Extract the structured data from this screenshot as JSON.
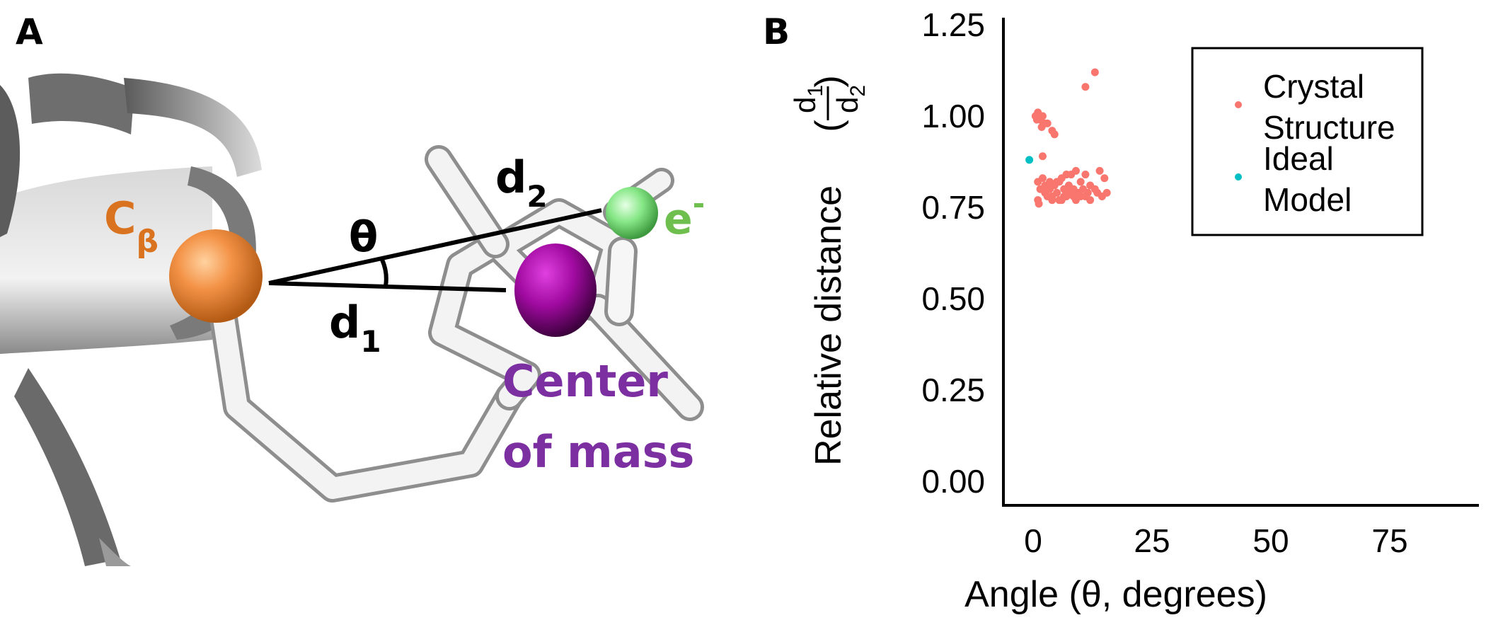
{
  "panel_a": {
    "letter": "A",
    "cb_main": "C",
    "cb_sub": "β",
    "theta": "θ",
    "d1_main": "d",
    "d1_sub": "1",
    "d2_main": "d",
    "d2_sub": "2",
    "electron_main": "e",
    "electron_sup": "-",
    "com_line1": "Center",
    "com_line2": "of mass",
    "colors": {
      "cbeta": "#f08a3a",
      "cbeta_label": "#d9731f",
      "electron": "#7fe07f",
      "electron_label": "#6fbf4f",
      "com": "#8b0a8b",
      "com_label": "#7b2fa0",
      "ribbon": "#7a7a7a",
      "stick": "#e6e6e6"
    }
  },
  "panel_b": {
    "letter": "B"
  },
  "chart_data": {
    "type": "scatter",
    "xlabel": "Angle (θ, degrees)",
    "ylabel_main": "Relative distance",
    "ylabel_frac_num": "d",
    "ylabel_frac_num_sub": "1",
    "ylabel_frac_den": "d",
    "ylabel_frac_den_sub": "2",
    "ylabel_paren_open": "(",
    "ylabel_paren_close": ")",
    "xlim": [
      -4,
      95
    ],
    "ylim": [
      0,
      1.25
    ],
    "x_ticks": [
      0,
      25,
      50,
      75
    ],
    "x_tick_labels": [
      "0",
      "25",
      "50",
      "75"
    ],
    "y_ticks": [
      0,
      0.25,
      0.5,
      0.75,
      1.0,
      1.25
    ],
    "y_tick_labels": [
      "0.00",
      "0.25",
      "0.50",
      "0.75",
      "1.00",
      "1.25"
    ],
    "grid": false,
    "legend_position": "top-right",
    "series": [
      {
        "name": "Crystal Structure",
        "legend_lines": [
          "Crystal",
          "Structure"
        ],
        "color": "#f8766d",
        "x": [
          13.0,
          11.0,
          0.5,
          1.0,
          1.5,
          2.0,
          2.5,
          0.8,
          1.8,
          2.2,
          3.0,
          4.0,
          4.5,
          2.0,
          1.0,
          3.5,
          5.0,
          6.0,
          7.0,
          8.0,
          9.0,
          10.0,
          11.0,
          12.0,
          14.0,
          15.0,
          2.5,
          3.5,
          4.5,
          5.5,
          6.5,
          7.5,
          8.5,
          9.5,
          10.5,
          11.5,
          13.0,
          14.5,
          15.5,
          1.5,
          2.5,
          3.0,
          4.0,
          5.0,
          6.0,
          7.0,
          8.0,
          9.0,
          10.0,
          12.0,
          13.5,
          1.0,
          2.0,
          3.0,
          4.0,
          5.5,
          6.5,
          7.5,
          8.5,
          9.5,
          11.0,
          1.2
        ],
        "y": [
          1.12,
          1.08,
          1.0,
          1.01,
          0.99,
          1.0,
          0.98,
          0.99,
          0.97,
          0.98,
          0.98,
          0.96,
          0.95,
          0.89,
          0.77,
          0.82,
          0.82,
          0.83,
          0.84,
          0.84,
          0.85,
          0.82,
          0.84,
          0.81,
          0.85,
          0.83,
          0.81,
          0.8,
          0.81,
          0.82,
          0.8,
          0.81,
          0.8,
          0.79,
          0.8,
          0.79,
          0.8,
          0.78,
          0.79,
          0.8,
          0.79,
          0.78,
          0.78,
          0.79,
          0.77,
          0.78,
          0.79,
          0.77,
          0.78,
          0.77,
          0.79,
          0.82,
          0.83,
          0.81,
          0.77,
          0.77,
          0.78,
          0.79,
          0.78,
          0.79,
          0.78,
          0.76
        ]
      },
      {
        "name": "Ideal Model",
        "legend_lines": [
          "Ideal",
          "Model"
        ],
        "color": "#00bfc4",
        "x": [
          -0.8
        ],
        "y": [
          0.88
        ]
      }
    ]
  }
}
